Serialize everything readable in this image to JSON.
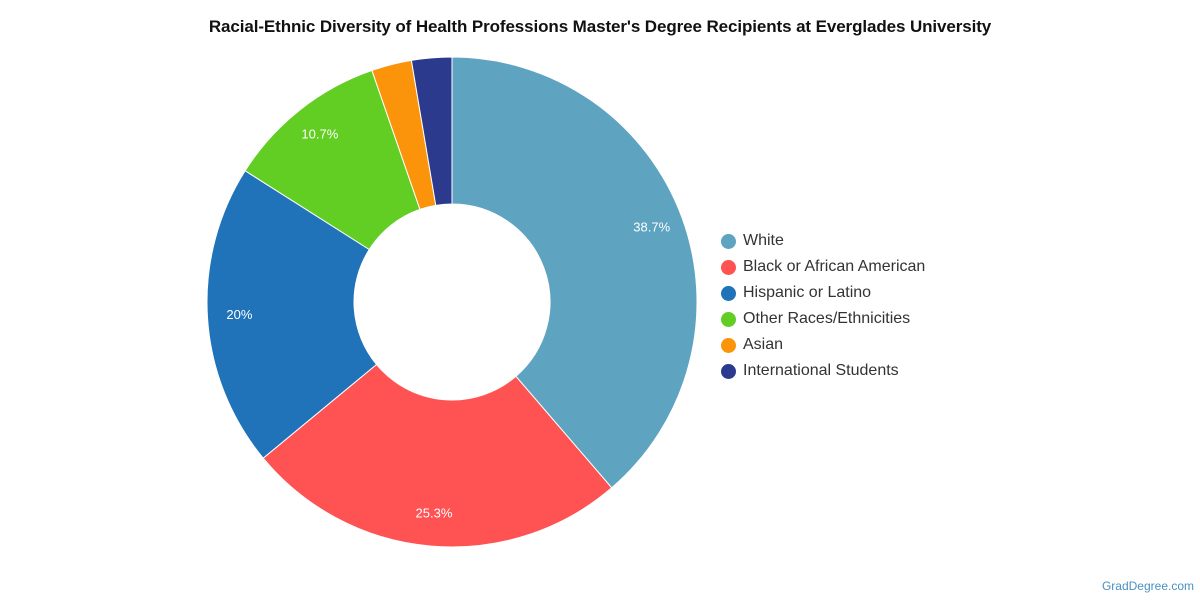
{
  "chart_data": {
    "type": "pie",
    "title": "Racial-Ethnic Diversity of Health Professions Master's Degree Recipients at Everglades University",
    "donut": true,
    "legend_position": "right",
    "slices": [
      {
        "name": "White",
        "value": 38.7,
        "label": "38.7%",
        "color": "#5ea3bf"
      },
      {
        "name": "Black or African American",
        "value": 25.3,
        "label": "25.3%",
        "color": "#fe5253"
      },
      {
        "name": "Hispanic or Latino",
        "value": 20,
        "label": "20%",
        "color": "#2073b9"
      },
      {
        "name": "Other Races/Ethnicities",
        "value": 10.7,
        "label": "10.7%",
        "color": "#62cd23"
      },
      {
        "name": "Asian",
        "value": 2.65,
        "label": "",
        "color": "#fb940a"
      },
      {
        "name": "International Students",
        "value": 2.65,
        "label": "",
        "color": "#2c3a8e"
      }
    ]
  },
  "watermark": "GradDegree.com"
}
